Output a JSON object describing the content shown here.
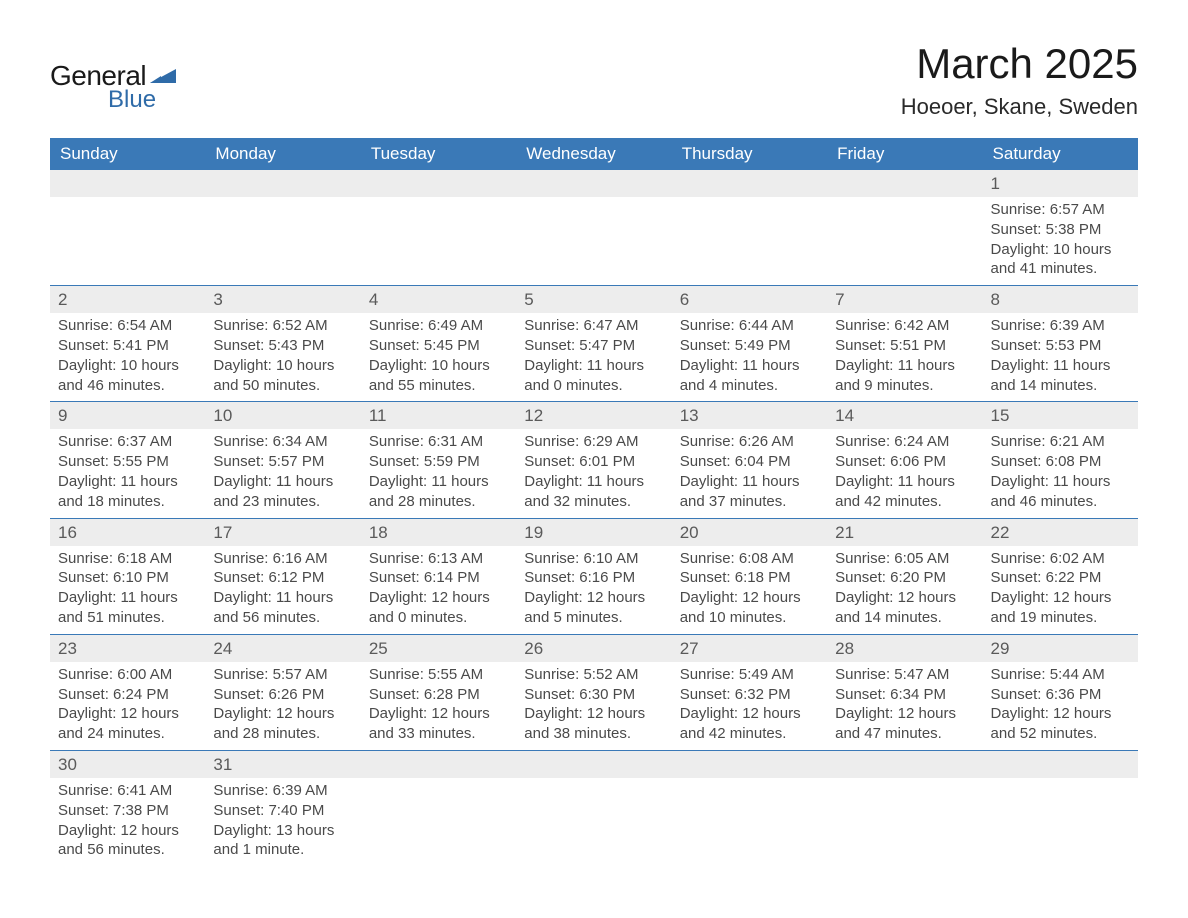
{
  "logo": {
    "main": "General",
    "sub": "Blue",
    "icon_color": "#2f6ba8"
  },
  "title": "March 2025",
  "location": "Hoeoer, Skane, Sweden",
  "colors": {
    "header_bg": "#3a79b7",
    "header_text": "#ffffff",
    "daynum_bg": "#ededed",
    "row_border": "#3a79b7",
    "body_text": "#4a4a4a"
  },
  "day_headers": [
    "Sunday",
    "Monday",
    "Tuesday",
    "Wednesday",
    "Thursday",
    "Friday",
    "Saturday"
  ],
  "weeks": [
    [
      null,
      null,
      null,
      null,
      null,
      null,
      {
        "n": "1",
        "sr": "6:57 AM",
        "ss": "5:38 PM",
        "dl": "10 hours and 41 minutes."
      }
    ],
    [
      {
        "n": "2",
        "sr": "6:54 AM",
        "ss": "5:41 PM",
        "dl": "10 hours and 46 minutes."
      },
      {
        "n": "3",
        "sr": "6:52 AM",
        "ss": "5:43 PM",
        "dl": "10 hours and 50 minutes."
      },
      {
        "n": "4",
        "sr": "6:49 AM",
        "ss": "5:45 PM",
        "dl": "10 hours and 55 minutes."
      },
      {
        "n": "5",
        "sr": "6:47 AM",
        "ss": "5:47 PM",
        "dl": "11 hours and 0 minutes."
      },
      {
        "n": "6",
        "sr": "6:44 AM",
        "ss": "5:49 PM",
        "dl": "11 hours and 4 minutes."
      },
      {
        "n": "7",
        "sr": "6:42 AM",
        "ss": "5:51 PM",
        "dl": "11 hours and 9 minutes."
      },
      {
        "n": "8",
        "sr": "6:39 AM",
        "ss": "5:53 PM",
        "dl": "11 hours and 14 minutes."
      }
    ],
    [
      {
        "n": "9",
        "sr": "6:37 AM",
        "ss": "5:55 PM",
        "dl": "11 hours and 18 minutes."
      },
      {
        "n": "10",
        "sr": "6:34 AM",
        "ss": "5:57 PM",
        "dl": "11 hours and 23 minutes."
      },
      {
        "n": "11",
        "sr": "6:31 AM",
        "ss": "5:59 PM",
        "dl": "11 hours and 28 minutes."
      },
      {
        "n": "12",
        "sr": "6:29 AM",
        "ss": "6:01 PM",
        "dl": "11 hours and 32 minutes."
      },
      {
        "n": "13",
        "sr": "6:26 AM",
        "ss": "6:04 PM",
        "dl": "11 hours and 37 minutes."
      },
      {
        "n": "14",
        "sr": "6:24 AM",
        "ss": "6:06 PM",
        "dl": "11 hours and 42 minutes."
      },
      {
        "n": "15",
        "sr": "6:21 AM",
        "ss": "6:08 PM",
        "dl": "11 hours and 46 minutes."
      }
    ],
    [
      {
        "n": "16",
        "sr": "6:18 AM",
        "ss": "6:10 PM",
        "dl": "11 hours and 51 minutes."
      },
      {
        "n": "17",
        "sr": "6:16 AM",
        "ss": "6:12 PM",
        "dl": "11 hours and 56 minutes."
      },
      {
        "n": "18",
        "sr": "6:13 AM",
        "ss": "6:14 PM",
        "dl": "12 hours and 0 minutes."
      },
      {
        "n": "19",
        "sr": "6:10 AM",
        "ss": "6:16 PM",
        "dl": "12 hours and 5 minutes."
      },
      {
        "n": "20",
        "sr": "6:08 AM",
        "ss": "6:18 PM",
        "dl": "12 hours and 10 minutes."
      },
      {
        "n": "21",
        "sr": "6:05 AM",
        "ss": "6:20 PM",
        "dl": "12 hours and 14 minutes."
      },
      {
        "n": "22",
        "sr": "6:02 AM",
        "ss": "6:22 PM",
        "dl": "12 hours and 19 minutes."
      }
    ],
    [
      {
        "n": "23",
        "sr": "6:00 AM",
        "ss": "6:24 PM",
        "dl": "12 hours and 24 minutes."
      },
      {
        "n": "24",
        "sr": "5:57 AM",
        "ss": "6:26 PM",
        "dl": "12 hours and 28 minutes."
      },
      {
        "n": "25",
        "sr": "5:55 AM",
        "ss": "6:28 PM",
        "dl": "12 hours and 33 minutes."
      },
      {
        "n": "26",
        "sr": "5:52 AM",
        "ss": "6:30 PM",
        "dl": "12 hours and 38 minutes."
      },
      {
        "n": "27",
        "sr": "5:49 AM",
        "ss": "6:32 PM",
        "dl": "12 hours and 42 minutes."
      },
      {
        "n": "28",
        "sr": "5:47 AM",
        "ss": "6:34 PM",
        "dl": "12 hours and 47 minutes."
      },
      {
        "n": "29",
        "sr": "5:44 AM",
        "ss": "6:36 PM",
        "dl": "12 hours and 52 minutes."
      }
    ],
    [
      {
        "n": "30",
        "sr": "6:41 AM",
        "ss": "7:38 PM",
        "dl": "12 hours and 56 minutes."
      },
      {
        "n": "31",
        "sr": "6:39 AM",
        "ss": "7:40 PM",
        "dl": "13 hours and 1 minute."
      },
      null,
      null,
      null,
      null,
      null
    ]
  ],
  "labels": {
    "sunrise": "Sunrise: ",
    "sunset": "Sunset: ",
    "daylight": "Daylight: "
  }
}
